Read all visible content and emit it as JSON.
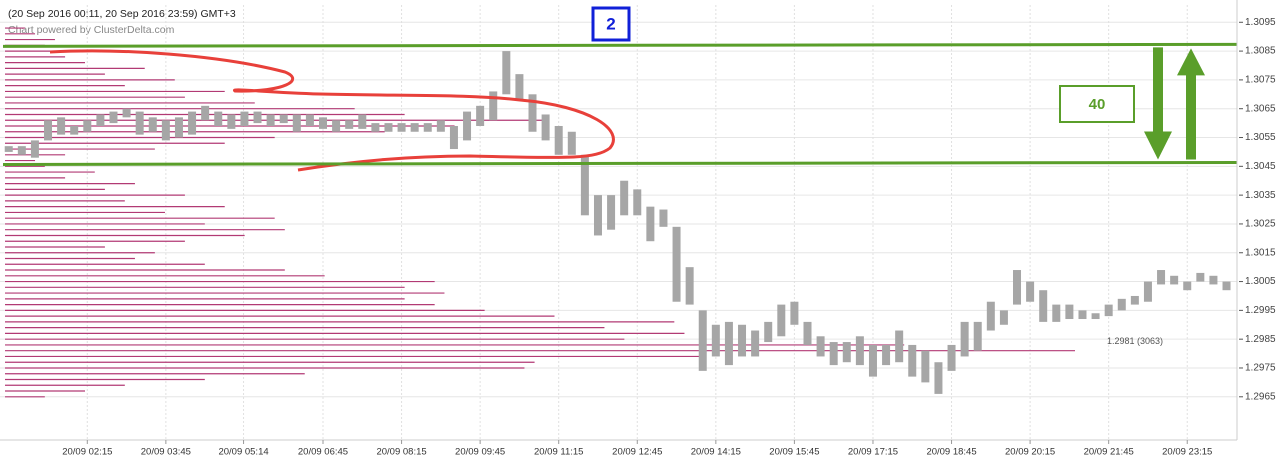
{
  "chart_data": {
    "type": "candlestick",
    "title": "(20 Sep 2016 00:11, 20 Sep 2016 23:59) GMT+3",
    "subtitle": "Chart powered by ClusterDelta.com",
    "xlim": [
      35,
      1452
    ],
    "xticks": [
      {
        "value": 135,
        "label": "20/09 02:15"
      },
      {
        "value": 225,
        "label": "20/09 03:45"
      },
      {
        "value": 314,
        "label": "20/09 05:14"
      },
      {
        "value": 405,
        "label": "20/09 06:45"
      },
      {
        "value": 495,
        "label": "20/09 08:15"
      },
      {
        "value": 585,
        "label": "20/09 09:45"
      },
      {
        "value": 675,
        "label": "20/09 11:15"
      },
      {
        "value": 765,
        "label": "20/09 12:45"
      },
      {
        "value": 855,
        "label": "20/09 14:15"
      },
      {
        "value": 945,
        "label": "20/09 15:45"
      },
      {
        "value": 1035,
        "label": "20/09 17:15"
      },
      {
        "value": 1125,
        "label": "20/09 18:45"
      },
      {
        "value": 1215,
        "label": "20/09 20:15"
      },
      {
        "value": 1305,
        "label": "20/09 21:45"
      },
      {
        "value": 1395,
        "label": "20/09 23:15"
      }
    ],
    "ylim": [
      1.295,
      1.3101
    ],
    "yticks": [
      1.2965,
      1.2975,
      1.2985,
      1.2995,
      1.3005,
      1.3015,
      1.3025,
      1.3035,
      1.3045,
      1.3055,
      1.3065,
      1.3075,
      1.3085,
      1.3095
    ],
    "grid": true,
    "x": [
      45,
      60,
      75,
      90,
      105,
      120,
      135,
      150,
      165,
      180,
      195,
      210,
      225,
      240,
      255,
      270,
      285,
      300,
      315,
      330,
      345,
      360,
      375,
      390,
      405,
      420,
      435,
      450,
      465,
      480,
      495,
      510,
      525,
      540,
      555,
      570,
      585,
      600,
      615,
      630,
      645,
      660,
      675,
      690,
      705,
      720,
      735,
      750,
      765,
      780,
      795,
      810,
      825,
      840,
      855,
      870,
      885,
      900,
      915,
      930,
      945,
      960,
      975,
      990,
      1005,
      1020,
      1035,
      1050,
      1065,
      1080,
      1095,
      1110,
      1125,
      1140,
      1155,
      1170,
      1185,
      1200,
      1215,
      1230,
      1245,
      1260,
      1275,
      1290,
      1305,
      1320,
      1335,
      1350,
      1365,
      1380,
      1395,
      1410,
      1425,
      1440
    ],
    "series": [
      {
        "color": "#a6a6a6",
        "high": [
          1.3052,
          1.3052,
          1.3054,
          1.3061,
          1.3062,
          1.3059,
          1.3061,
          1.3063,
          1.3064,
          1.3065,
          1.3064,
          1.3062,
          1.3061,
          1.3062,
          1.3064,
          1.3066,
          1.3064,
          1.3063,
          1.3064,
          1.3064,
          1.3063,
          1.3063,
          1.3063,
          1.3063,
          1.3062,
          1.3061,
          1.3061,
          1.3063,
          1.306,
          1.306,
          1.306,
          1.306,
          1.306,
          1.3061,
          1.3059,
          1.3064,
          1.3066,
          1.3071,
          1.3085,
          1.3077,
          1.307,
          1.3063,
          1.3059,
          1.3057,
          1.3049,
          1.3035,
          1.3035,
          1.304,
          1.3037,
          1.3031,
          1.303,
          1.3024,
          1.301,
          1.2995,
          1.299,
          1.2991,
          1.299,
          1.2988,
          1.2991,
          1.2997,
          1.2998,
          1.2991,
          1.2986,
          1.2984,
          1.2984,
          1.2986,
          1.2983,
          1.2983,
          1.2988,
          1.2983,
          1.2981,
          1.2977,
          1.2983,
          1.2991,
          1.2991,
          1.2998,
          1.2995,
          1.3009,
          1.3005,
          1.3002,
          1.2997,
          1.2997,
          1.2995,
          1.2994,
          1.2997,
          1.2999,
          1.3,
          1.3005,
          1.3009,
          1.3007,
          1.3005,
          1.3008,
          1.3007,
          1.3005
        ],
        "low": [
          1.305,
          1.3049,
          1.3048,
          1.3054,
          1.3056,
          1.3056,
          1.3057,
          1.3059,
          1.306,
          1.3062,
          1.3056,
          1.3057,
          1.3054,
          1.3055,
          1.3056,
          1.3061,
          1.3059,
          1.3058,
          1.3059,
          1.306,
          1.3059,
          1.306,
          1.3057,
          1.3059,
          1.3058,
          1.3057,
          1.3058,
          1.3058,
          1.3057,
          1.3057,
          1.3057,
          1.3057,
          1.3057,
          1.3057,
          1.3051,
          1.3054,
          1.3059,
          1.3061,
          1.307,
          1.3068,
          1.3057,
          1.3054,
          1.3049,
          1.3049,
          1.3028,
          1.3021,
          1.3023,
          1.3028,
          1.3028,
          1.3019,
          1.3024,
          1.2998,
          1.2997,
          1.2974,
          1.2979,
          1.2976,
          1.2979,
          1.2979,
          1.2984,
          1.2986,
          1.299,
          1.2983,
          1.2979,
          1.2976,
          1.2977,
          1.2976,
          1.2972,
          1.2976,
          1.2977,
          1.2972,
          1.297,
          1.2966,
          1.2974,
          1.2979,
          1.2981,
          1.2988,
          1.299,
          1.2997,
          1.2998,
          1.2991,
          1.2991,
          1.2992,
          1.2992,
          1.2992,
          1.2993,
          1.2995,
          1.2997,
          1.2998,
          1.3004,
          1.3004,
          1.3002,
          1.3005,
          1.3004,
          1.3002
        ]
      }
    ],
    "profile": {
      "color": "#b23a74",
      "levels": [
        1.2965,
        1.2967,
        1.2969,
        1.2971,
        1.2973,
        1.2975,
        1.2977,
        1.2979,
        1.2981,
        1.2983,
        1.2985,
        1.2987,
        1.2989,
        1.2991,
        1.2993,
        1.2995,
        1.2997,
        1.2999,
        1.3001,
        1.3003,
        1.3005,
        1.3007,
        1.3009,
        1.3011,
        1.3013,
        1.3015,
        1.3017,
        1.3019,
        1.3021,
        1.3023,
        1.3025,
        1.3027,
        1.3029,
        1.3031,
        1.3033,
        1.3035,
        1.3037,
        1.3039,
        1.3041,
        1.3043,
        1.3045,
        1.3047,
        1.3049,
        1.3051,
        1.3053,
        1.3055,
        1.3057,
        1.3059,
        1.3061,
        1.3063,
        1.3065,
        1.3067,
        1.3069,
        1.3071,
        1.3073,
        1.3075,
        1.3077,
        1.3079,
        1.3081,
        1.3083,
        1.3085,
        1.3087,
        1.3089,
        1.3091,
        1.3093
      ],
      "volumes": [
        114,
        229,
        343,
        572,
        858,
        1487,
        1516,
        2002,
        3063,
        2574,
        1773,
        1945,
        1716,
        1916,
        1573,
        1373,
        1230,
        1144,
        1258,
        1144,
        1230,
        915,
        801,
        572,
        372,
        429,
        286,
        515,
        686,
        801,
        572,
        772,
        458,
        629,
        343,
        515,
        286,
        372,
        172,
        257,
        114,
        86,
        172,
        429,
        629,
        772,
        1087,
        1287,
        1544,
        1144,
        1001,
        715,
        515,
        629,
        343,
        486,
        286,
        400,
        229,
        172,
        200,
        114,
        143,
        86,
        57
      ],
      "poc_label": "1.2981 (3063)"
    },
    "annotations": {
      "levels": [
        1.3087,
        1.3046
      ],
      "color": "#5a9e2a",
      "box_label": "2",
      "range_label": "40"
    }
  }
}
